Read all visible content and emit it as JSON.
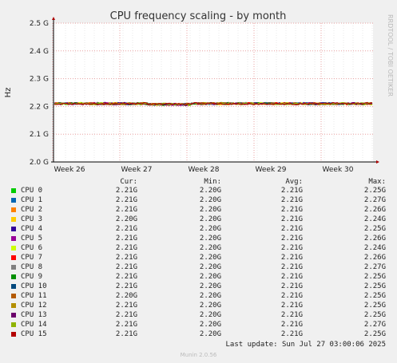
{
  "chart_data": {
    "type": "line",
    "title": "CPU frequency scaling - by month",
    "ylabel": "Hz",
    "yticks": [
      "2.0 G",
      "2.1 G",
      "2.2 G",
      "2.3 G",
      "2.4 G",
      "2.5 G"
    ],
    "ylim": [
      2.0,
      2.5
    ],
    "xticks": [
      "Week 26",
      "Week 27",
      "Week 28",
      "Week 29",
      "Week 30"
    ],
    "grid": true,
    "series_level_ghz": 2.21,
    "side_label": "RRDTOOL / TOBI OETIKER",
    "series": [
      {
        "name": "CPU 0",
        "color": "#00cc00",
        "cur": "2.21G",
        "min": "2.20G",
        "avg": "2.21G",
        "max": "2.25G"
      },
      {
        "name": "CPU 1",
        "color": "#0066b3",
        "cur": "2.21G",
        "min": "2.20G",
        "avg": "2.21G",
        "max": "2.27G"
      },
      {
        "name": "CPU 2",
        "color": "#ff8000",
        "cur": "2.21G",
        "min": "2.20G",
        "avg": "2.21G",
        "max": "2.26G"
      },
      {
        "name": "CPU 3",
        "color": "#ffcc00",
        "cur": "2.20G",
        "min": "2.20G",
        "avg": "2.21G",
        "max": "2.24G"
      },
      {
        "name": "CPU 4",
        "color": "#330099",
        "cur": "2.21G",
        "min": "2.20G",
        "avg": "2.21G",
        "max": "2.25G"
      },
      {
        "name": "CPU 5",
        "color": "#990099",
        "cur": "2.21G",
        "min": "2.20G",
        "avg": "2.21G",
        "max": "2.26G"
      },
      {
        "name": "CPU 6",
        "color": "#ccff00",
        "cur": "2.21G",
        "min": "2.20G",
        "avg": "2.21G",
        "max": "2.24G"
      },
      {
        "name": "CPU 7",
        "color": "#ff0000",
        "cur": "2.21G",
        "min": "2.20G",
        "avg": "2.21G",
        "max": "2.26G"
      },
      {
        "name": "CPU 8",
        "color": "#808080",
        "cur": "2.21G",
        "min": "2.20G",
        "avg": "2.21G",
        "max": "2.27G"
      },
      {
        "name": "CPU 9",
        "color": "#008f00",
        "cur": "2.21G",
        "min": "2.20G",
        "avg": "2.21G",
        "max": "2.25G"
      },
      {
        "name": "CPU 10",
        "color": "#00487d",
        "cur": "2.21G",
        "min": "2.20G",
        "avg": "2.21G",
        "max": "2.25G"
      },
      {
        "name": "CPU 11",
        "color": "#b35a00",
        "cur": "2.20G",
        "min": "2.20G",
        "avg": "2.21G",
        "max": "2.25G"
      },
      {
        "name": "CPU 12",
        "color": "#b38f00",
        "cur": "2.21G",
        "min": "2.20G",
        "avg": "2.21G",
        "max": "2.25G"
      },
      {
        "name": "CPU 13",
        "color": "#6b006b",
        "cur": "2.21G",
        "min": "2.20G",
        "avg": "2.21G",
        "max": "2.25G"
      },
      {
        "name": "CPU 14",
        "color": "#8fb300",
        "cur": "2.21G",
        "min": "2.20G",
        "avg": "2.21G",
        "max": "2.27G"
      },
      {
        "name": "CPU 15",
        "color": "#b30000",
        "cur": "2.21G",
        "min": "2.20G",
        "avg": "2.21G",
        "max": "2.25G"
      }
    ]
  },
  "legend": {
    "cur_label": "Cur:",
    "min_label": "Min:",
    "avg_label": "Avg:",
    "max_label": "Max:"
  },
  "footer": {
    "last_update": "Last update: Sun Jul 27 03:00:06 2025",
    "version": "Munin 2.0.56"
  }
}
